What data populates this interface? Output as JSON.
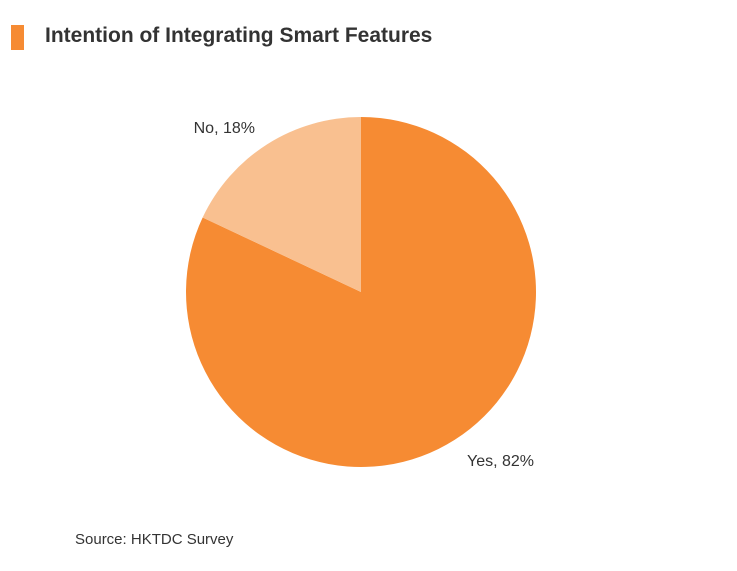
{
  "title": "Intention of Integrating Smart Features",
  "source": "Source: HKTDC Survey",
  "colors": {
    "accent": "#f68b33",
    "yes": "#f68b33",
    "no": "#f9c090"
  },
  "chart_data": {
    "type": "pie",
    "title": "Intention of Integrating Smart Features",
    "slices": [
      {
        "label": "Yes",
        "value": 82,
        "display": "Yes, 82%",
        "color": "#f68b33"
      },
      {
        "label": "No",
        "value": 18,
        "display": "No, 18%",
        "color": "#f9c090"
      }
    ],
    "start": "12 o'clock",
    "direction": "clockwise"
  }
}
